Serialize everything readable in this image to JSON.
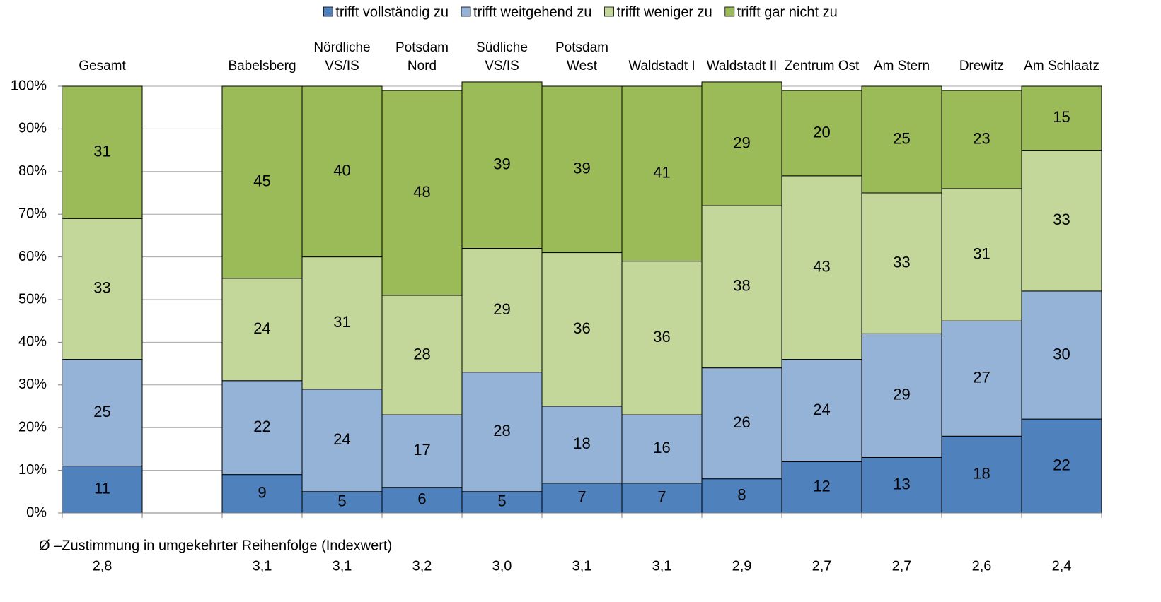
{
  "chart_data": {
    "type": "stacked_bar",
    "categories": [
      [
        "Gesamt"
      ],
      null,
      [
        "Babelsberg"
      ],
      [
        "Nördliche",
        "VS/IS"
      ],
      [
        "Potsdam",
        "Nord"
      ],
      [
        "Südliche",
        "VS/IS"
      ],
      [
        "Potsdam",
        "West"
      ],
      [
        "Waldstadt I"
      ],
      [
        "Waldstadt II"
      ],
      [
        "Zentrum Ost"
      ],
      [
        "Am Stern"
      ],
      [
        "Drewitz"
      ],
      [
        "Am Schlaatz"
      ]
    ],
    "series": [
      {
        "name": "trifft vollständig zu",
        "color": "#4f81bd",
        "values": [
          11,
          null,
          9,
          5,
          6,
          5,
          7,
          7,
          8,
          12,
          13,
          18,
          22
        ]
      },
      {
        "name": "trifft weitgehend zu",
        "color": "#95b3d7",
        "values": [
          25,
          null,
          22,
          24,
          17,
          28,
          18,
          16,
          26,
          24,
          29,
          27,
          30
        ]
      },
      {
        "name": "trifft weniger zu",
        "color": "#c4d79b",
        "values": [
          33,
          null,
          24,
          31,
          28,
          29,
          36,
          36,
          38,
          43,
          33,
          31,
          33
        ]
      },
      {
        "name": "trifft gar nicht zu",
        "color": "#9bbb59",
        "values": [
          31,
          null,
          45,
          40,
          48,
          39,
          39,
          41,
          29,
          20,
          25,
          23,
          15
        ]
      }
    ],
    "ylim": [
      0,
      100
    ],
    "yticks": [
      {
        "value": 0,
        "label": "0%"
      },
      {
        "value": 10,
        "label": "10%"
      },
      {
        "value": 20,
        "label": "20%"
      },
      {
        "value": 30,
        "label": "30%"
      },
      {
        "value": 40,
        "label": "40%"
      },
      {
        "value": 50,
        "label": "50%"
      },
      {
        "value": 60,
        "label": "60%"
      },
      {
        "value": 70,
        "label": "70%"
      },
      {
        "value": 80,
        "label": "80%"
      },
      {
        "value": 90,
        "label": "90%"
      },
      {
        "value": 100,
        "label": "100%"
      }
    ],
    "grid": true,
    "legend": "top",
    "index_title": "Ø –Zustimmung in umgekehrter Reihenfolge (Indexwert)",
    "index_values": [
      "2,8",
      null,
      "3,1",
      "3,1",
      "3,2",
      "3,0",
      "3,1",
      "3,1",
      "2,9",
      "2,7",
      "2,7",
      "2,6",
      "2,4"
    ]
  }
}
